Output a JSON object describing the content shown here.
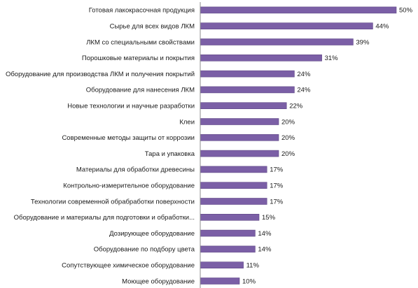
{
  "chart_data": {
    "type": "bar",
    "orientation": "horizontal",
    "categories": [
      "Готовая лакокрасочная продукция",
      "Сырье для всех видов ЛКМ",
      "ЛКМ со специальными свойствами",
      "Порошковые материалы и покрытия",
      "Оборудование для производства ЛКМ и получения покрытий",
      "Оборудование для нанесения ЛКМ",
      "Новые технологии и научные разработки",
      "Клеи",
      "Современные методы защиты от коррозии",
      "Тара и упаковка",
      "Материалы для обработки древесины",
      "Контрольно-измерительное оборудование",
      "Технологии современной обрабработки поверхности",
      "Оборудование и материалы для подготовки и обработки...",
      "Дозирующее оборудование",
      "Оборудование по подбору цвета",
      "Сопутствующее химическое оборудование",
      "Моющее оборудование"
    ],
    "values": [
      50,
      44,
      39,
      31,
      24,
      24,
      22,
      20,
      20,
      20,
      17,
      17,
      17,
      15,
      14,
      14,
      11,
      10
    ],
    "value_labels": [
      "50%",
      "44%",
      "39%",
      "31%",
      "24%",
      "24%",
      "22%",
      "20%",
      "20%",
      "20%",
      "17%",
      "17%",
      "17%",
      "15%",
      "14%",
      "14%",
      "11%",
      "10%"
    ],
    "unit": "%",
    "xlim": [
      0,
      50
    ],
    "grid": false,
    "legend": "none",
    "bar_color": "#7B5FA6",
    "bar_edge_color": "#5E4585",
    "axis_color": "#8C8C8C"
  }
}
